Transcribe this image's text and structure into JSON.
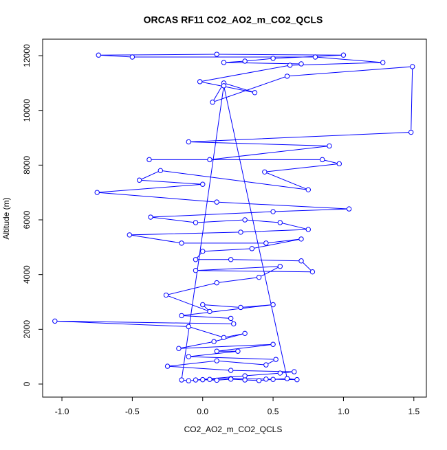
{
  "chart_data": {
    "type": "line",
    "title": "ORCAS RF11 CO2_AO2_m_CO2_QCLS",
    "x_label": "CO2_AO2_m_CO2_QCLS",
    "y_label": "Altitude (m)",
    "xlim": [
      -1.137,
      1.589
    ],
    "ylim": [
      -477,
      12603
    ],
    "xticks": [
      {
        "value": -1,
        "label": "-1.0"
      },
      -0.5,
      {
        "value": 0,
        "label": "0.0"
      },
      0.5,
      {
        "value": 1,
        "label": "1.0"
      },
      1.5
    ],
    "yticks": [
      0,
      2000,
      4000,
      6000,
      8000,
      10000,
      12000
    ],
    "grid": false,
    "markers": "circle",
    "series": [
      {
        "color": "#0000ff",
        "x": [
          0.7,
          0.15,
          0.3,
          0.5,
          1.0,
          0.1,
          -0.74,
          -0.5,
          0.8,
          1.28,
          0.62,
          -0.02,
          0.37,
          0.15,
          0.07,
          0.6,
          1.49,
          1.48,
          -0.1,
          0.9,
          0.05,
          -0.38,
          0.85,
          0.97,
          0.44,
          0.75,
          -0.3,
          -0.45,
          0.0,
          -0.75,
          0.1,
          1.04,
          0.5,
          -0.37,
          -0.05,
          0.3,
          0.55,
          0.75,
          0.27,
          -0.52,
          -0.15,
          0.45,
          0.7,
          0.35,
          0.0,
          -0.05,
          0.2,
          0.7,
          0.78,
          -0.05,
          0.55,
          0.4,
          0.1,
          -0.26,
          0.05,
          0.0,
          0.27,
          0.5,
          -0.15,
          0.2,
          0.22,
          -1.05,
          -0.1,
          0.15,
          0.3,
          0.08,
          -0.17,
          0.5,
          0.1,
          0.25,
          -0.1,
          0.52,
          0.45,
          0.1,
          -0.25,
          0.2,
          0.65,
          0.55,
          0.3,
          -0.05,
          0.05,
          0.2,
          0.45,
          0.67,
          0.6,
          0.5,
          0.4,
          0.3,
          0.2,
          0.1,
          0.0,
          -0.1,
          -0.15,
          0.15,
          0.6
        ],
        "y": [
          11700,
          11750,
          11800,
          11900,
          12020,
          12050,
          12020,
          11950,
          11950,
          11750,
          11650,
          11050,
          10650,
          11000,
          10300,
          11250,
          11600,
          9200,
          8850,
          8700,
          8200,
          8200,
          8200,
          8050,
          7750,
          7100,
          7800,
          7450,
          7300,
          7000,
          6650,
          6400,
          6300,
          6100,
          5900,
          6000,
          5900,
          5650,
          5550,
          5450,
          5150,
          5150,
          5300,
          4950,
          4850,
          4550,
          4550,
          4500,
          4100,
          4150,
          4300,
          3900,
          3700,
          3250,
          2650,
          2900,
          2800,
          2900,
          2500,
          2400,
          2200,
          2300,
          2100,
          1700,
          1850,
          1550,
          1300,
          1450,
          1200,
          1200,
          1000,
          900,
          700,
          850,
          650,
          500,
          450,
          400,
          300,
          150,
          170,
          200,
          180,
          160,
          200,
          170,
          130,
          150,
          180,
          140,
          160,
          120,
          150,
          10900,
          200
        ]
      }
    ]
  }
}
